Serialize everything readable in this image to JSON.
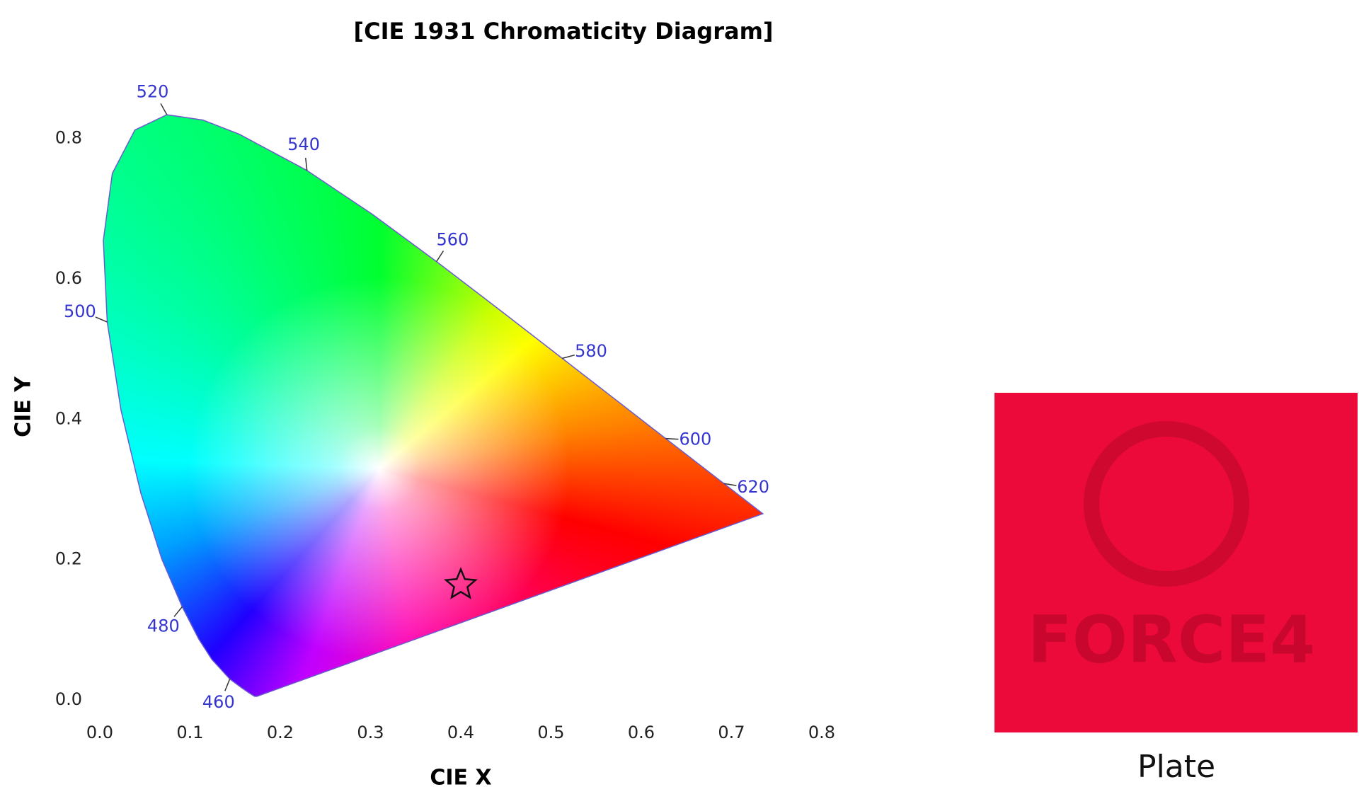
{
  "chart_data": {
    "type": "scatter",
    "title": "[CIE 1931 Chromaticity Diagram]",
    "x_label": "CIE X",
    "y_label": "CIE Y",
    "xlim": [
      0,
      0.8
    ],
    "ylim": [
      0,
      0.85
    ],
    "xticks": [
      {
        "value": 0,
        "label": "0.0"
      },
      0.1,
      0.2,
      0.3,
      0.4,
      0.5,
      0.6,
      0.7,
      0.8
    ],
    "yticks": [
      {
        "value": 0,
        "label": "0.0"
      },
      0.2,
      0.4,
      0.6,
      0.8
    ],
    "grid": false,
    "locus": {
      "wavelengths": [
        null,
        null,
        null,
        null,
        460,
        null,
        null,
        480,
        null,
        null,
        null,
        500,
        null,
        null,
        null,
        520,
        null,
        null,
        540,
        null,
        560,
        null,
        580,
        null,
        600,
        null,
        620,
        null,
        null
      ],
      "x": [
        0.1741,
        0.1714,
        0.1644,
        0.1566,
        0.144,
        0.1241,
        0.1096,
        0.0913,
        0.0687,
        0.0454,
        0.0235,
        0.0082,
        0.0039,
        0.0139,
        0.0389,
        0.0743,
        0.1142,
        0.1547,
        0.2296,
        0.3016,
        0.3731,
        0.4441,
        0.5125,
        0.5752,
        0.627,
        0.6658,
        0.6915,
        0.719,
        0.7347
      ],
      "y": [
        0.005,
        0.0051,
        0.0109,
        0.0177,
        0.0297,
        0.0578,
        0.0868,
        0.1327,
        0.2007,
        0.295,
        0.4127,
        0.5384,
        0.6548,
        0.7502,
        0.812,
        0.8338,
        0.8262,
        0.8059,
        0.7543,
        0.6923,
        0.6245,
        0.5547,
        0.4866,
        0.4242,
        0.3725,
        0.334,
        0.3083,
        0.2809,
        0.2653
      ]
    },
    "points": {
      "x": [
        0.4
      ],
      "y": [
        0.164
      ]
    }
  },
  "plate": {
    "caption": "Plate",
    "logo": "FORCE4"
  }
}
